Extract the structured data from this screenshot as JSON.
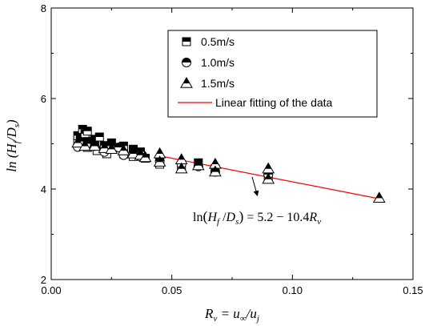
{
  "chart_data": {
    "type": "scatter",
    "xlabel": "R_v = u_∞/u_j",
    "ylabel": "ln (H_f/D_s)",
    "xlim": [
      0.0,
      0.15
    ],
    "ylim": [
      2,
      8
    ],
    "xticks": [
      0.0,
      0.05,
      0.1,
      0.15
    ],
    "xtick_labels": [
      "0.00",
      "0.05",
      "0.10",
      "0.15"
    ],
    "yticks": [
      2,
      4,
      6,
      8
    ],
    "ytick_labels": [
      "2",
      "4",
      "6",
      "8"
    ],
    "legend_position": "top-right",
    "series": [
      {
        "name": "0.5m/s",
        "marker": "square-half-filled",
        "points": [
          [
            0.011,
            5.08
          ],
          [
            0.011,
            5.18
          ],
          [
            0.012,
            5.12
          ],
          [
            0.012,
            4.98
          ],
          [
            0.013,
            5.32
          ],
          [
            0.014,
            5.22
          ],
          [
            0.015,
            5.28
          ],
          [
            0.015,
            5.05
          ],
          [
            0.015,
            4.92
          ],
          [
            0.018,
            5.1
          ],
          [
            0.018,
            5.02
          ],
          [
            0.019,
            4.85
          ],
          [
            0.02,
            5.15
          ],
          [
            0.022,
            4.96
          ],
          [
            0.023,
            4.78
          ],
          [
            0.025,
            5.02
          ],
          [
            0.027,
            4.92
          ],
          [
            0.03,
            4.95
          ],
          [
            0.03,
            4.78
          ],
          [
            0.034,
            4.88
          ],
          [
            0.034,
            4.72
          ],
          [
            0.037,
            4.82
          ],
          [
            0.039,
            4.68
          ],
          [
            0.045,
            4.65
          ],
          [
            0.045,
            4.55
          ],
          [
            0.054,
            4.48
          ],
          [
            0.061,
            4.58
          ],
          [
            0.068,
            4.45
          ],
          [
            0.09,
            4.28
          ]
        ]
      },
      {
        "name": "1.0m/s",
        "marker": "circle-half-filled",
        "points": [
          [
            0.011,
            4.93
          ],
          [
            0.012,
            5.05
          ],
          [
            0.015,
            5.0
          ],
          [
            0.018,
            4.95
          ],
          [
            0.022,
            4.82
          ],
          [
            0.025,
            4.95
          ],
          [
            0.028,
            4.92
          ],
          [
            0.03,
            4.75
          ],
          [
            0.034,
            4.8
          ],
          [
            0.037,
            4.72
          ],
          [
            0.045,
            4.62
          ],
          [
            0.054,
            4.55
          ],
          [
            0.061,
            4.5
          ],
          [
            0.068,
            4.38
          ],
          [
            0.09,
            4.32
          ]
        ]
      },
      {
        "name": "1.5m/s",
        "marker": "triangle-half-filled",
        "points": [
          [
            0.011,
            5.02
          ],
          [
            0.014,
            4.95
          ],
          [
            0.018,
            4.95
          ],
          [
            0.022,
            4.9
          ],
          [
            0.025,
            4.88
          ],
          [
            0.03,
            4.85
          ],
          [
            0.034,
            4.78
          ],
          [
            0.037,
            4.75
          ],
          [
            0.039,
            4.7
          ],
          [
            0.045,
            4.78
          ],
          [
            0.045,
            4.6
          ],
          [
            0.054,
            4.65
          ],
          [
            0.054,
            4.45
          ],
          [
            0.061,
            4.52
          ],
          [
            0.068,
            4.55
          ],
          [
            0.068,
            4.38
          ],
          [
            0.09,
            4.45
          ],
          [
            0.09,
            4.22
          ],
          [
            0.136,
            3.8
          ]
        ]
      },
      {
        "name": "Linear fitting of the data",
        "type": "line",
        "color": "#ff0000",
        "intercept": 5.2,
        "slope": -10.4,
        "x_range": [
          0.045,
          0.136
        ]
      }
    ],
    "annotation": {
      "text": "ln(H_f/D_s) = 5.2−10.4R_v",
      "arrow_from": [
        0.0855,
        3.85
      ],
      "arrow_to": [
        0.0833,
        4.27
      ]
    }
  }
}
